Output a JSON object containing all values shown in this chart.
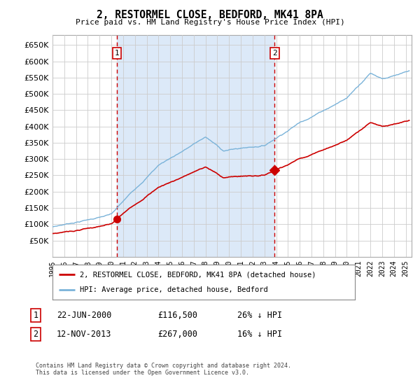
{
  "title": "2, RESTORMEL CLOSE, BEDFORD, MK41 8PA",
  "subtitle": "Price paid vs. HM Land Registry's House Price Index (HPI)",
  "bg_color": "#ffffff",
  "fig_color": "#ffffff",
  "shaded_color": "#dce9f8",
  "grid_color": "#cccccc",
  "hpi_color": "#7ab3d9",
  "price_color": "#cc0000",
  "dashed_line_color": "#cc0000",
  "ylim": [
    0,
    680000
  ],
  "yticks": [
    0,
    50000,
    100000,
    150000,
    200000,
    250000,
    300000,
    350000,
    400000,
    450000,
    500000,
    550000,
    600000,
    650000
  ],
  "sale1_date": 2000.47,
  "sale1_price": 116500,
  "sale2_date": 2013.87,
  "sale2_price": 267000,
  "legend_label_price": "2, RESTORMEL CLOSE, BEDFORD, MK41 8PA (detached house)",
  "legend_label_hpi": "HPI: Average price, detached house, Bedford",
  "annotation1_date": "22-JUN-2000",
  "annotation1_price": "£116,500",
  "annotation1_hpi": "26% ↓ HPI",
  "annotation2_date": "12-NOV-2013",
  "annotation2_price": "£267,000",
  "annotation2_hpi": "16% ↓ HPI",
  "footer": "Contains HM Land Registry data © Crown copyright and database right 2024.\nThis data is licensed under the Open Government Licence v3.0.",
  "xmin": 1995.0,
  "xmax": 2025.5
}
